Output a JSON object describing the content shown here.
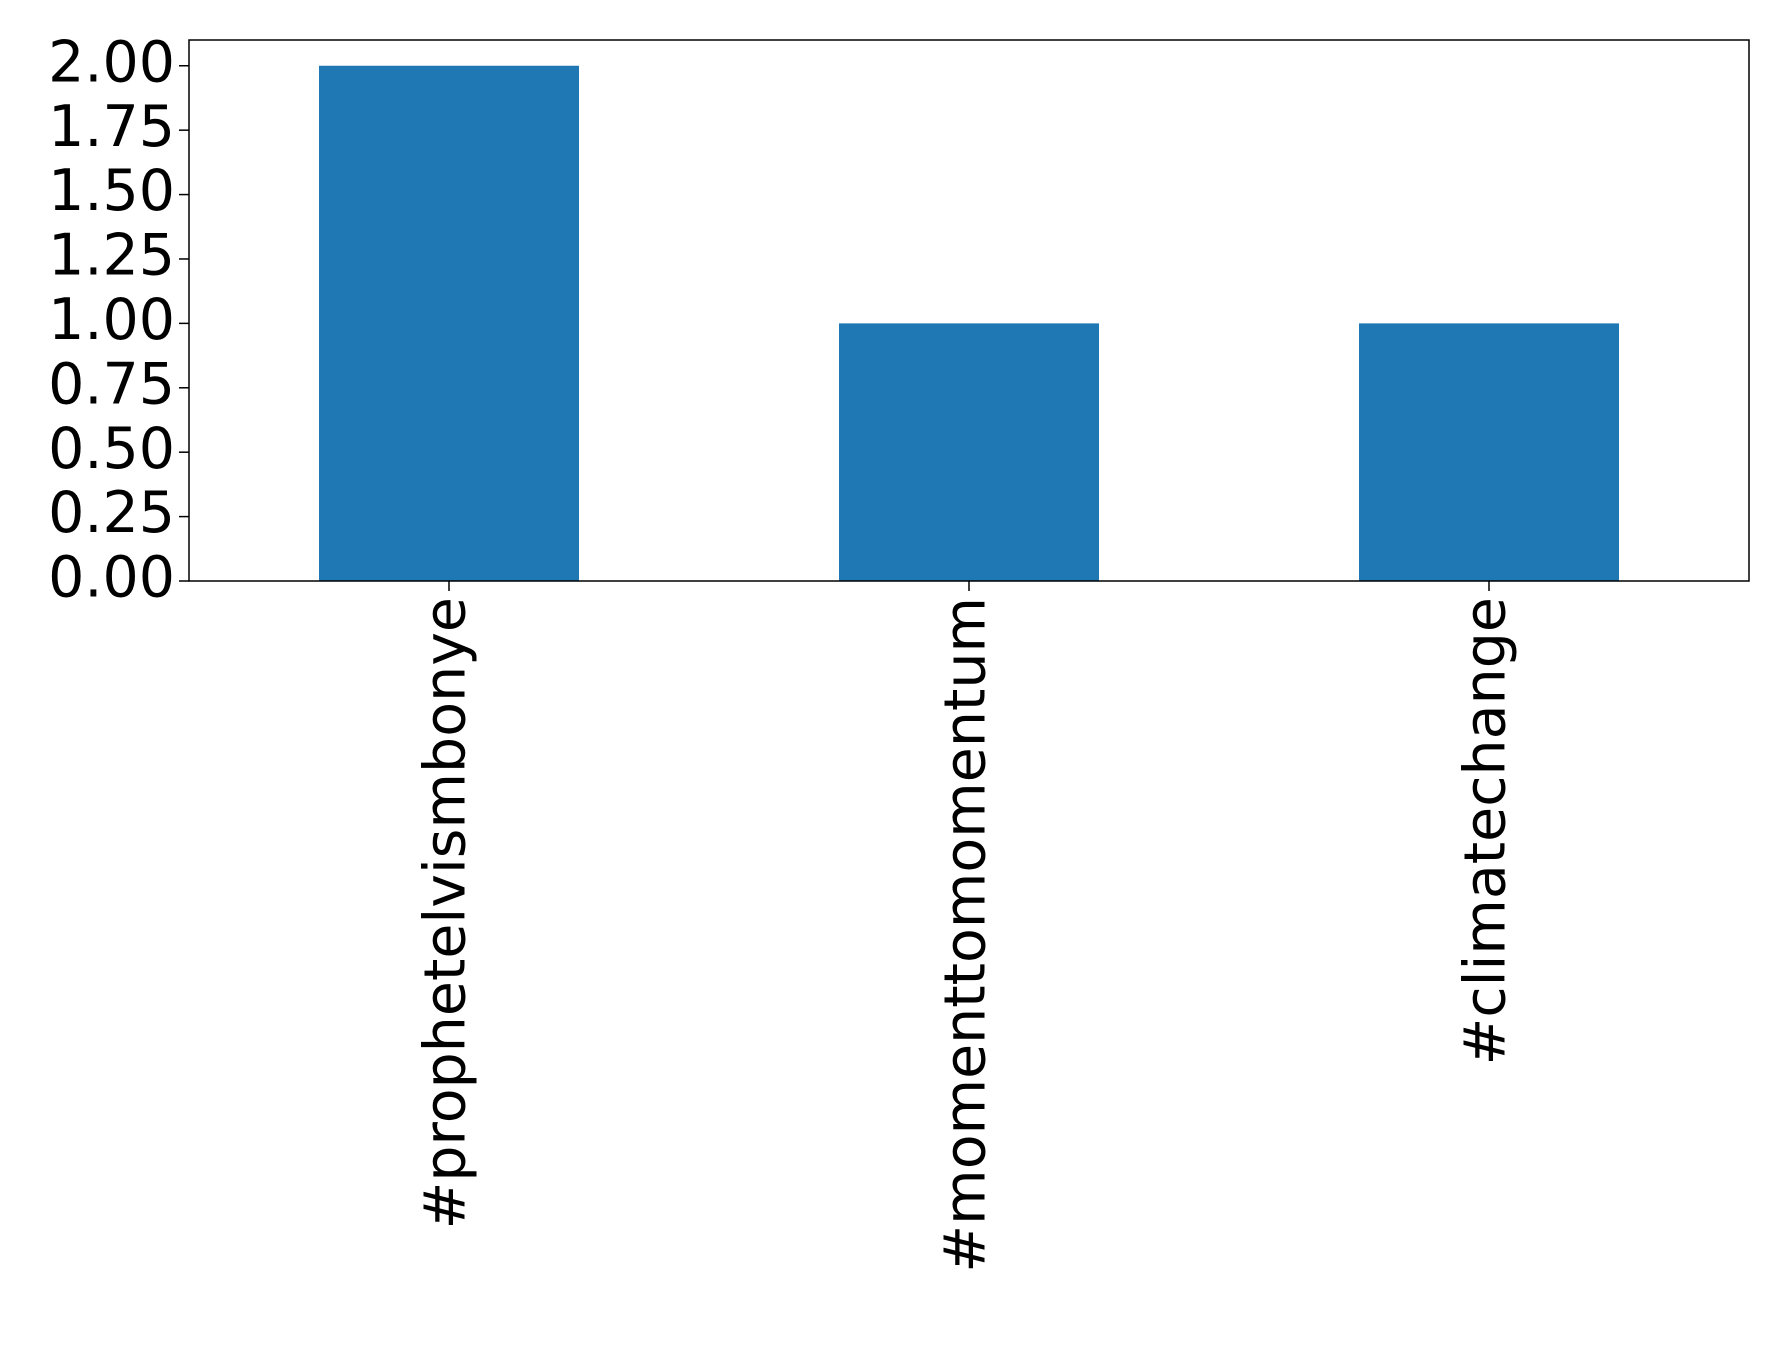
{
  "chart_data": {
    "type": "bar",
    "categories": [
      "#prophetelvismbonye",
      "#momenttomomentum",
      "#climatechange"
    ],
    "values": [
      2,
      1,
      1
    ],
    "color": "#1f77b4",
    "ylim": [
      0,
      2.1
    ],
    "yticks": [
      {
        "value": 0,
        "label": "0.00"
      },
      {
        "value": 0.25,
        "label": "0.25"
      },
      {
        "value": 0.5,
        "label": "0.50"
      },
      {
        "value": 0.75,
        "label": "0.75"
      },
      {
        "value": 1,
        "label": "1.00"
      },
      {
        "value": 1.25,
        "label": "1.25"
      },
      {
        "value": 1.5,
        "label": "1.50"
      },
      {
        "value": 1.75,
        "label": "1.75"
      },
      {
        "value": 2,
        "label": "2.00"
      }
    ],
    "grid": false
  }
}
